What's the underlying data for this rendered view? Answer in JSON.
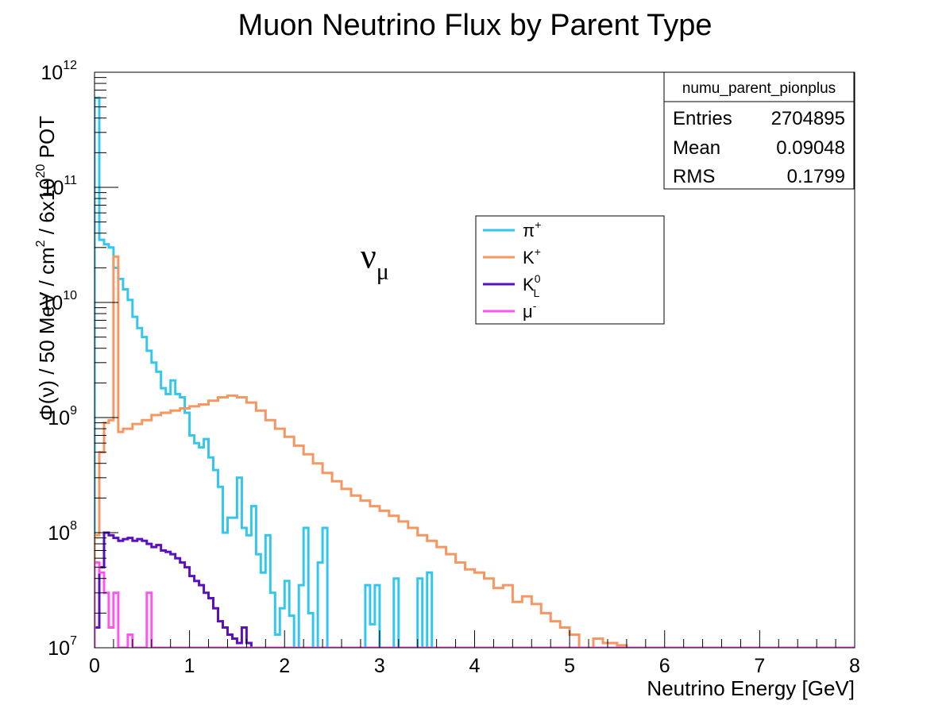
{
  "chart_data": {
    "type": "line",
    "title": "Muon Neutrino Flux by Parent Type",
    "xlabel": "Neutrino Energy [GeV]",
    "ylabel": {
      "prefix": "Φ(ν) / 50 MeV / cm",
      "cm_exp": "2",
      "mid": " / 6x10",
      "pot_exp": "20",
      "suffix": " POT"
    },
    "xlim": [
      0,
      8
    ],
    "ylim": [
      10000000,
      1000000000000
    ],
    "yscale": "log",
    "xticks": [
      "0",
      "1",
      "2",
      "3",
      "4",
      "5",
      "6",
      "7",
      "8"
    ],
    "yticks": [
      {
        "base": "10",
        "exp": "7",
        "value": 10000000
      },
      {
        "base": "10",
        "exp": "8",
        "value": 100000000
      },
      {
        "base": "10",
        "exp": "9",
        "value": 1000000000
      },
      {
        "base": "10",
        "exp": "10",
        "value": 10000000000
      },
      {
        "base": "10",
        "exp": "11",
        "value": 100000000000
      },
      {
        "base": "10",
        "exp": "12",
        "value": 1000000000000
      }
    ],
    "grid": false,
    "legend_position": "upper-middle",
    "annotation": {
      "text": "ν",
      "sub": "μ",
      "x": 2.8,
      "y": 20000000000
    },
    "stats_box": {
      "name": "numu_parent_pionplus",
      "rows": [
        {
          "label": "Entries",
          "value": "2704895"
        },
        {
          "label": "Mean",
          "value": "0.09048"
        },
        {
          "label": "RMS",
          "value": "0.1799"
        }
      ]
    },
    "bin_width": 0.05,
    "series": [
      {
        "legend_main": "π",
        "legend_sup": "+",
        "legend_sub": "",
        "color": "#33c7f0",
        "points": [
          [
            0,
            600000000000.0
          ],
          [
            0.05,
            35000000000.0
          ],
          [
            0.1,
            32000000000.0
          ],
          [
            0.15,
            30000000000.0
          ],
          [
            0.2,
            20000000000.0
          ],
          [
            0.25,
            16000000000.0
          ],
          [
            0.3,
            13000000000.0
          ],
          [
            0.35,
            10500000000.0
          ],
          [
            0.4,
            7500000000.0
          ],
          [
            0.45,
            6000000000.0
          ],
          [
            0.5,
            5000000000.0
          ],
          [
            0.55,
            3800000000.0
          ],
          [
            0.6,
            3000000000.0
          ],
          [
            0.65,
            2500000000.0
          ],
          [
            0.7,
            1800000000.0
          ],
          [
            0.75,
            1600000000.0
          ],
          [
            0.8,
            2100000000.0
          ],
          [
            0.85,
            1600000000.0
          ],
          [
            0.9,
            1500000000.0
          ],
          [
            0.95,
            1100000000.0
          ],
          [
            1.0,
            700000000.0
          ],
          [
            1.05,
            600000000.0
          ],
          [
            1.1,
            550000000.0
          ],
          [
            1.15,
            650000000.0
          ],
          [
            1.2,
            450000000.0
          ],
          [
            1.25,
            350000000.0
          ],
          [
            1.3,
            250000000.0
          ],
          [
            1.35,
            100000000.0
          ],
          [
            1.4,
            135000000.0
          ],
          [
            1.45,
            135000000.0
          ],
          [
            1.5,
            300000000.0
          ],
          [
            1.55,
            110000000.0
          ],
          [
            1.6,
            95000000.0
          ],
          [
            1.65,
            170000000.0
          ],
          [
            1.7,
            65000000.0
          ],
          [
            1.75,
            45000000.0
          ],
          [
            1.8,
            95000000.0
          ],
          [
            1.85,
            30000000.0
          ],
          [
            1.9,
            13000000.0
          ],
          [
            1.95,
            22000000.0
          ],
          [
            2.0,
            38000000.0
          ],
          [
            2.05,
            19000000.0
          ],
          [
            2.1,
            10000000.0
          ],
          [
            2.15,
            35000000.0
          ],
          [
            2.2,
            110000000.0
          ],
          [
            2.25,
            20000000.0
          ],
          [
            2.3,
            10000000.0
          ],
          [
            2.35,
            55000000.0
          ],
          [
            2.4,
            110000000.0
          ],
          [
            2.45,
            10000000.0
          ],
          [
            2.85,
            35000000.0
          ],
          [
            2.9,
            16000000.0
          ],
          [
            2.95,
            35000000.0
          ],
          [
            3.0,
            10000000.0
          ],
          [
            3.15,
            40000000.0
          ],
          [
            3.2,
            10000000.0
          ],
          [
            3.4,
            40000000.0
          ],
          [
            3.45,
            10000000.0
          ],
          [
            3.5,
            45000000.0
          ],
          [
            3.55,
            10000000.0
          ],
          [
            8,
            10000000.0
          ]
        ]
      },
      {
        "legend_main": "K",
        "legend_sup": "+",
        "legend_sub": "",
        "color": "#f69660",
        "points": [
          [
            0,
            95000000.0
          ],
          [
            0.05,
            500000000.0
          ],
          [
            0.1,
            900000000.0
          ],
          [
            0.15,
            950000000.0
          ],
          [
            0.2,
            25000000000.0
          ],
          [
            0.25,
            750000000.0
          ],
          [
            0.3,
            800000000.0
          ],
          [
            0.4,
            880000000.0
          ],
          [
            0.5,
            950000000.0
          ],
          [
            0.6,
            1050000000.0
          ],
          [
            0.7,
            1100000000.0
          ],
          [
            0.8,
            1150000000.0
          ],
          [
            0.9,
            1200000000.0
          ],
          [
            1.0,
            1250000000.0
          ],
          [
            1.1,
            1300000000.0
          ],
          [
            1.2,
            1400000000.0
          ],
          [
            1.3,
            1500000000.0
          ],
          [
            1.4,
            1550000000.0
          ],
          [
            1.5,
            1500000000.0
          ],
          [
            1.6,
            1350000000.0
          ],
          [
            1.7,
            1150000000.0
          ],
          [
            1.8,
            950000000.0
          ],
          [
            1.9,
            800000000.0
          ],
          [
            2.0,
            680000000.0
          ],
          [
            2.1,
            570000000.0
          ],
          [
            2.2,
            480000000.0
          ],
          [
            2.3,
            400000000.0
          ],
          [
            2.4,
            330000000.0
          ],
          [
            2.5,
            280000000.0
          ],
          [
            2.6,
            240000000.0
          ],
          [
            2.7,
            210000000.0
          ],
          [
            2.8,
            190000000.0
          ],
          [
            2.9,
            170000000.0
          ],
          [
            3.0,
            155000000.0
          ],
          [
            3.1,
            140000000.0
          ],
          [
            3.2,
            125000000.0
          ],
          [
            3.3,
            110000000.0
          ],
          [
            3.4,
            95000000.0
          ],
          [
            3.5,
            85000000.0
          ],
          [
            3.6,
            75000000.0
          ],
          [
            3.7,
            65000000.0
          ],
          [
            3.8,
            55000000.0
          ],
          [
            3.9,
            48000000.0
          ],
          [
            4.0,
            45000000.0
          ],
          [
            4.1,
            40000000.0
          ],
          [
            4.2,
            33000000.0
          ],
          [
            4.3,
            35000000.0
          ],
          [
            4.4,
            25000000.0
          ],
          [
            4.5,
            28000000.0
          ],
          [
            4.6,
            24000000.0
          ],
          [
            4.7,
            20000000.0
          ],
          [
            4.8,
            17000000.0
          ],
          [
            4.9,
            15000000.0
          ],
          [
            5.0,
            13000000.0
          ],
          [
            5.1,
            10000000.0
          ],
          [
            5.25,
            12000000.0
          ],
          [
            5.35,
            11000000.0
          ],
          [
            5.5,
            10500000.0
          ],
          [
            5.6,
            10000000.0
          ],
          [
            8,
            10000000.0
          ]
        ]
      },
      {
        "legend_main": "K",
        "legend_sup": "0",
        "legend_sub": "L",
        "color": "#5b0fc4",
        "points": [
          [
            0,
            15000000.0
          ],
          [
            0.05,
            50000000.0
          ],
          [
            0.1,
            100000000.0
          ],
          [
            0.15,
            95000000.0
          ],
          [
            0.2,
            90000000.0
          ],
          [
            0.25,
            85000000.0
          ],
          [
            0.3,
            88000000.0
          ],
          [
            0.35,
            90000000.0
          ],
          [
            0.4,
            85000000.0
          ],
          [
            0.45,
            88000000.0
          ],
          [
            0.5,
            85000000.0
          ],
          [
            0.55,
            80000000.0
          ],
          [
            0.6,
            75000000.0
          ],
          [
            0.65,
            78000000.0
          ],
          [
            0.7,
            70000000.0
          ],
          [
            0.75,
            68000000.0
          ],
          [
            0.8,
            65000000.0
          ],
          [
            0.85,
            60000000.0
          ],
          [
            0.9,
            55000000.0
          ],
          [
            0.95,
            50000000.0
          ],
          [
            1.0,
            42000000.0
          ],
          [
            1.05,
            38000000.0
          ],
          [
            1.1,
            35000000.0
          ],
          [
            1.15,
            30000000.0
          ],
          [
            1.2,
            27000000.0
          ],
          [
            1.25,
            22000000.0
          ],
          [
            1.3,
            17000000.0
          ],
          [
            1.35,
            15000000.0
          ],
          [
            1.4,
            13000000.0
          ],
          [
            1.45,
            12000000.0
          ],
          [
            1.5,
            11000000.0
          ],
          [
            1.55,
            15000000.0
          ],
          [
            1.6,
            11000000.0
          ],
          [
            1.65,
            10000000.0
          ],
          [
            8,
            10000000.0
          ]
        ]
      },
      {
        "legend_main": "μ",
        "legend_sup": "-",
        "legend_sub": "",
        "color": "#ff55ee",
        "points": [
          [
            0,
            55000000.0
          ],
          [
            0.05,
            45000000.0
          ],
          [
            0.1,
            30000000.0
          ],
          [
            0.15,
            15000000.0
          ],
          [
            0.2,
            30000000.0
          ],
          [
            0.25,
            10000000.0
          ],
          [
            0.35,
            13000000.0
          ],
          [
            0.4,
            10000000.0
          ],
          [
            0.55,
            30000000.0
          ],
          [
            0.6,
            10000000.0
          ],
          [
            8,
            10000000.0
          ]
        ]
      }
    ]
  }
}
